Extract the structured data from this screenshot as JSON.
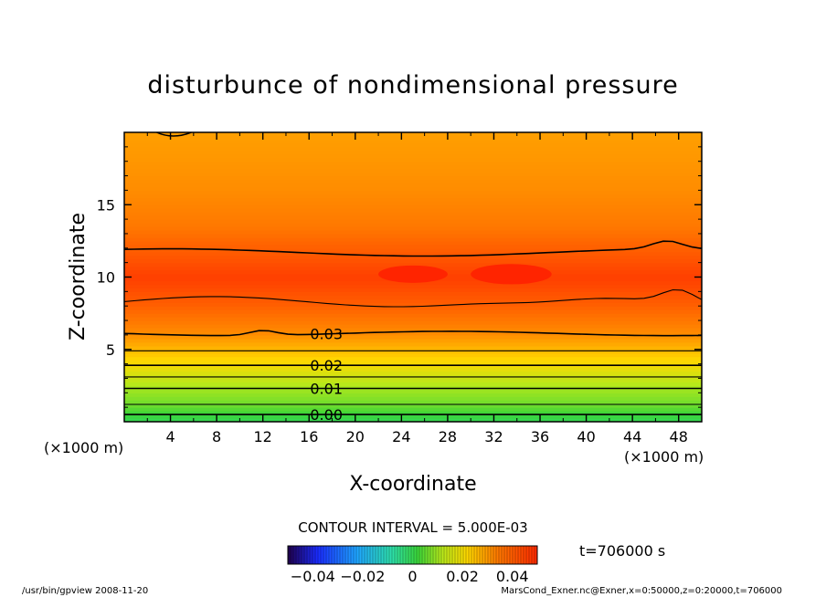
{
  "chart_data": {
    "type": "heatmap",
    "title": "disturbunce of nondimensional pressure",
    "xlabel": "X-coordinate",
    "ylabel": "Z-coordinate",
    "x_unit": "(×1000 m)",
    "z_unit": "(×1000 m)",
    "xlim": [
      0,
      50
    ],
    "ylim": [
      0,
      20
    ],
    "x_ticks": [
      "4",
      "8",
      "12",
      "16",
      "20",
      "24",
      "28",
      "32",
      "36",
      "40",
      "44",
      "48"
    ],
    "y_ticks": [
      "5",
      "10",
      "15"
    ],
    "contour_interval_text": "CONTOUR INTERVAL = 5.000E-03",
    "contour_labels": [
      {
        "text": "0.03",
        "z": 6.1
      },
      {
        "text": "0.02",
        "z": 3.9
      },
      {
        "text": "0.01",
        "z": 2.3
      },
      {
        "text": "0.00",
        "z": 0.5
      }
    ],
    "contour_levels": [
      {
        "value": 0.0,
        "z": 0.5
      },
      {
        "value": 0.005,
        "z": 1.2
      },
      {
        "value": 0.01,
        "z": 2.3
      },
      {
        "value": 0.015,
        "z": 3.1
      },
      {
        "value": 0.02,
        "z": 3.9
      },
      {
        "value": 0.025,
        "z": 4.9
      },
      {
        "value": 0.03,
        "z": 6.1
      },
      {
        "value": 0.035,
        "z": 8.3
      },
      {
        "value": 0.035,
        "z": 11.7
      }
    ],
    "profile": [
      {
        "z": 0.0,
        "value": -0.002
      },
      {
        "z": 0.5,
        "value": 0.0
      },
      {
        "z": 1.2,
        "value": 0.005
      },
      {
        "z": 2.3,
        "value": 0.01
      },
      {
        "z": 3.1,
        "value": 0.015
      },
      {
        "z": 3.9,
        "value": 0.02
      },
      {
        "z": 4.9,
        "value": 0.025
      },
      {
        "z": 6.1,
        "value": 0.03
      },
      {
        "z": 8.3,
        "value": 0.035
      },
      {
        "z": 10.0,
        "value": 0.038
      },
      {
        "z": 11.7,
        "value": 0.035
      },
      {
        "z": 13.5,
        "value": 0.032
      },
      {
        "z": 16.0,
        "value": 0.03
      },
      {
        "z": 20.0,
        "value": 0.028
      }
    ],
    "colorbar": {
      "ticks": [
        "−0.04",
        "−0.02",
        "0",
        "0.02",
        "0.04"
      ],
      "range": [
        -0.05,
        0.05
      ]
    },
    "time_label": "t=706000 s",
    "footer_left": "/usr/bin/gpview  2008-11-20",
    "footer_right": "MarsCond_Exner.nc@Exner,x=0:50000,z=0:20000,t=706000"
  }
}
